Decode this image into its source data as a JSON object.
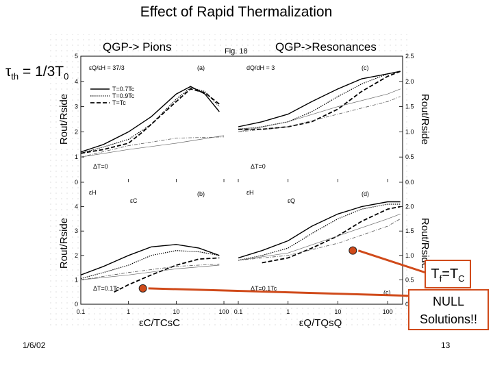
{
  "slide": {
    "title": "Effect of Rapid Thermalization",
    "label_left": "QGP-> Pions",
    "label_right": "QGP->Resonances",
    "tau_symbol": "τ",
    "tau_sub": "th",
    "tau_rhs": " = 1/3T",
    "tau_rhs_sub": "0",
    "tf_main": "T",
    "tf_sub": "f",
    "tf_rest": "=T",
    "tf_sub2": "C",
    "null_line1": "NULL",
    "null_line2": "Solutions!!",
    "date": "1/6/02",
    "page": "13",
    "accent_color": "#d04a1a"
  },
  "chart_data": {
    "type": "line",
    "figure_label": "Fig. 18",
    "xscale": "log",
    "xlim": [
      0.1,
      200
    ],
    "x_ticks": [
      "0.1",
      "1",
      "10",
      "100"
    ],
    "panels": [
      {
        "id": "top-left",
        "ylabel": "Rout/Rside",
        "ylim": [
          0,
          5
        ],
        "y_ticks": [
          "0",
          "1",
          "2",
          "3",
          "4",
          "5"
        ],
        "note_ratio": "εQ/εH = 37/3",
        "panel_tag": "(a)",
        "delta_t": "ΔT=0",
        "legend": [
          "T=0.7Tc",
          "T=0.9Tc",
          "T=Tc"
        ],
        "series": [
          {
            "name": "T=0.7Tc",
            "style": "solid",
            "x": [
              0.1,
              0.3,
              1,
              3,
              10,
              20,
              40,
              80
            ],
            "y": [
              1.2,
              1.5,
              2.0,
              2.6,
              3.5,
              3.8,
              3.5,
              2.8
            ]
          },
          {
            "name": "T=0.9Tc",
            "style": "dotted",
            "x": [
              0.1,
              0.3,
              1,
              3,
              10,
              20,
              40,
              80
            ],
            "y": [
              1.15,
              1.4,
              1.7,
              2.3,
              3.3,
              3.75,
              3.6,
              3.0
            ]
          },
          {
            "name": "T=Tc",
            "style": "dashed",
            "x": [
              0.1,
              0.3,
              1,
              2,
              3,
              10,
              20,
              40,
              80
            ],
            "y": [
              1.15,
              1.3,
              1.55,
              2.0,
              2.3,
              3.2,
              3.7,
              3.55,
              3.1
            ]
          },
          {
            "name": "",
            "style": "dash-dot",
            "x": [
              0.1,
              1,
              10,
              100
            ],
            "y": [
              1.0,
              1.45,
              1.75,
              1.8
            ]
          },
          {
            "name": "",
            "style": "thin",
            "x": [
              0.1,
              1,
              10,
              100
            ],
            "y": [
              1.0,
              1.3,
              1.55,
              1.85
            ]
          }
        ]
      },
      {
        "id": "top-right",
        "ylabel": "Rout/Rside",
        "ylim": [
          0,
          2.5
        ],
        "y_ticks": [
          "0.0",
          "0.5",
          "1.0",
          "1.5",
          "2.0",
          "2.5"
        ],
        "note_ratio": "dQ/dH = 3",
        "panel_tag": "(c)",
        "delta_t": "ΔT=0",
        "series": [
          {
            "name": "T=0.7Tc",
            "style": "solid",
            "x": [
              0.1,
              0.3,
              1,
              3,
              10,
              30,
              100,
              180
            ],
            "y": [
              1.1,
              1.2,
              1.35,
              1.6,
              1.85,
              2.05,
              2.15,
              2.2
            ]
          },
          {
            "name": "T=0.9Tc",
            "style": "dotted",
            "x": [
              0.1,
              0.3,
              1,
              3,
              10,
              30,
              100,
              180
            ],
            "y": [
              1.05,
              1.1,
              1.2,
              1.4,
              1.7,
              1.95,
              2.15,
              2.2
            ]
          },
          {
            "name": "T=Tc",
            "style": "dashed",
            "x": [
              0.1,
              0.3,
              1,
              3,
              10,
              30,
              100,
              180
            ],
            "y": [
              1.05,
              1.05,
              1.1,
              1.2,
              1.45,
              1.8,
              2.1,
              2.2
            ]
          },
          {
            "name": "",
            "style": "dash-dot",
            "x": [
              0.1,
              1,
              10,
              100,
              180
            ],
            "y": [
              1.0,
              1.1,
              1.35,
              1.6,
              1.7
            ]
          },
          {
            "name": "",
            "style": "thin",
            "x": [
              0.1,
              1,
              10,
              100,
              180
            ],
            "y": [
              1.0,
              1.2,
              1.5,
              1.75,
              1.85
            ]
          }
        ]
      },
      {
        "id": "bottom-left",
        "ylabel": "Rout/Rside",
        "ylim": [
          0,
          5
        ],
        "y_ticks": [
          "0",
          "1",
          "2",
          "3",
          "4"
        ],
        "annotations": [
          "εH",
          "εC"
        ],
        "panel_tag": "(b)",
        "delta_t": "ΔT=0.1Tc",
        "xlabel": "εC/TCsC",
        "series": [
          {
            "name": "T=0.7Tc",
            "style": "solid",
            "x": [
              0.1,
              0.3,
              1,
              3,
              10,
              30,
              80
            ],
            "y": [
              1.2,
              1.55,
              2.0,
              2.35,
              2.45,
              2.3,
              2.0
            ]
          },
          {
            "name": "T=0.9Tc",
            "style": "dotted",
            "x": [
              0.1,
              0.3,
              1,
              3,
              10,
              30,
              80
            ],
            "y": [
              1.05,
              1.3,
              1.6,
              2.0,
              2.2,
              2.15,
              2.0
            ]
          },
          {
            "name": "T=Tc",
            "style": "dashed",
            "x": [
              0.5,
              1,
              3,
              10,
              30,
              80
            ],
            "y": [
              0.5,
              0.8,
              1.2,
              1.6,
              1.85,
              1.9
            ]
          },
          {
            "name": "",
            "style": "dash-dot",
            "x": [
              0.1,
              1,
              10,
              80
            ],
            "y": [
              1.0,
              1.3,
              1.55,
              1.65
            ]
          },
          {
            "name": "",
            "style": "thin",
            "x": [
              0.1,
              1,
              10,
              80
            ],
            "y": [
              1.0,
              1.2,
              1.45,
              1.6
            ]
          }
        ]
      },
      {
        "id": "bottom-right",
        "ylabel": "Rout/Rside",
        "ylim": [
          0,
          2.5
        ],
        "y_ticks": [
          "0.0",
          "0.5",
          "1.0",
          "1.5",
          "2.0"
        ],
        "annotations": [
          "εH",
          "εQ"
        ],
        "panel_tag": "(d)",
        "panel_tag2": "(c)",
        "delta_t": "ΔT=0.1Tc",
        "xlabel": "εQ/TQsQ",
        "series": [
          {
            "name": "T=0.7Tc",
            "style": "solid",
            "x": [
              0.1,
              0.3,
              1,
              3,
              10,
              30,
              100,
              180
            ],
            "y": [
              0.95,
              1.1,
              1.3,
              1.6,
              1.85,
              2.0,
              2.1,
              2.1
            ]
          },
          {
            "name": "T=0.9Tc",
            "style": "dotted",
            "x": [
              0.1,
              0.3,
              1,
              3,
              10,
              30,
              100,
              180
            ],
            "y": [
              0.9,
              1.0,
              1.15,
              1.45,
              1.75,
              1.95,
              2.05,
              2.05
            ]
          },
          {
            "name": "T=Tc",
            "style": "dashed",
            "x": [
              0.3,
              1,
              3,
              10,
              30,
              100,
              180
            ],
            "y": [
              0.85,
              0.95,
              1.15,
              1.4,
              1.7,
              1.95,
              2.0
            ]
          },
          {
            "name": "",
            "style": "dash-dot",
            "x": [
              0.1,
              1,
              10,
              100,
              180
            ],
            "y": [
              0.9,
              1.0,
              1.25,
              1.6,
              1.75
            ]
          },
          {
            "name": "",
            "style": "thin",
            "x": [
              0.1,
              1,
              10,
              100,
              180
            ],
            "y": [
              0.9,
              1.05,
              1.4,
              1.75,
              1.85
            ]
          }
        ]
      }
    ],
    "markers": [
      {
        "panel": "bottom-left",
        "x": 2,
        "y": 0.65,
        "label": "NULL"
      },
      {
        "panel": "bottom-right",
        "x": 20,
        "y": 1.1,
        "label": "Tf=TC"
      }
    ]
  }
}
